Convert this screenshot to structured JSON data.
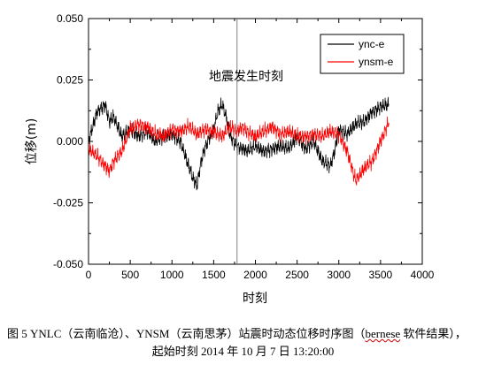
{
  "chart_data": {
    "type": "line",
    "xlabel": "时刻",
    "ylabel": "位移(m)",
    "xlim": [
      0,
      4000
    ],
    "ylim": [
      -0.05,
      0.05
    ],
    "x_ticks": [
      "0",
      "500",
      "1000",
      "1500",
      "2000",
      "2500",
      "3000",
      "3500",
      "4000"
    ],
    "y_ticks": [
      "0.050",
      "0.025",
      "0.000",
      "-0.025",
      "-0.050"
    ],
    "grid": false,
    "legend_position": "top-right",
    "annotation": {
      "text": "地震发生时刻",
      "x": 1780
    },
    "series": [
      {
        "name": "ync-e",
        "color": "#000000",
        "x": [
          0,
          100,
          200,
          250,
          300,
          400,
          500,
          600,
          700,
          800,
          900,
          1000,
          1100,
          1200,
          1250,
          1300,
          1350,
          1400,
          1500,
          1550,
          1600,
          1650,
          1700,
          1780,
          1850,
          1900,
          2000,
          2100,
          2200,
          2300,
          2400,
          2500,
          2600,
          2700,
          2800,
          2900,
          2950,
          3000,
          3100,
          3200,
          3300,
          3350,
          3400,
          3500,
          3600
        ],
        "y": [
          0.0,
          0.012,
          0.015,
          0.008,
          0.01,
          0.002,
          0.005,
          0.002,
          0.004,
          0.0,
          0.002,
          0.003,
          0.0,
          -0.01,
          -0.015,
          -0.018,
          -0.008,
          -0.002,
          0.005,
          0.012,
          0.015,
          0.01,
          0.002,
          -0.002,
          -0.003,
          -0.004,
          -0.002,
          -0.004,
          -0.003,
          -0.002,
          -0.003,
          0.002,
          -0.003,
          0.0,
          -0.008,
          -0.01,
          -0.004,
          0.005,
          0.003,
          0.007,
          0.008,
          0.01,
          0.012,
          0.014,
          0.015
        ]
      },
      {
        "name": "ynsm-e",
        "color": "#ff0000",
        "x": [
          0,
          100,
          200,
          250,
          300,
          400,
          500,
          600,
          700,
          800,
          900,
          1000,
          1100,
          1200,
          1300,
          1400,
          1500,
          1600,
          1700,
          1780,
          1850,
          1900,
          2000,
          2100,
          2200,
          2300,
          2400,
          2500,
          2600,
          2700,
          2800,
          2900,
          3000,
          3100,
          3150,
          3200,
          3250,
          3300,
          3400,
          3500,
          3600
        ],
        "y": [
          -0.003,
          -0.006,
          -0.01,
          -0.012,
          -0.008,
          -0.004,
          0.005,
          0.007,
          0.006,
          0.003,
          0.002,
          0.005,
          0.004,
          0.006,
          0.003,
          0.005,
          0.004,
          0.002,
          0.006,
          0.004,
          0.006,
          0.004,
          0.002,
          0.004,
          0.006,
          0.003,
          0.004,
          0.002,
          0.002,
          0.003,
          0.002,
          0.004,
          0.003,
          -0.004,
          -0.01,
          -0.016,
          -0.014,
          -0.011,
          -0.008,
          0.0,
          0.008
        ]
      }
    ]
  },
  "caption": {
    "line1_prefix": "图 5    YNLC（云南临沧）、YNSM（云南思茅）站震时动态位移时序图（",
    "line1_software": "bernese",
    "line1_suffix": " 软件结果），",
    "line2": "起始时刻 2014 年 10 月 7 日 13:20:00"
  }
}
